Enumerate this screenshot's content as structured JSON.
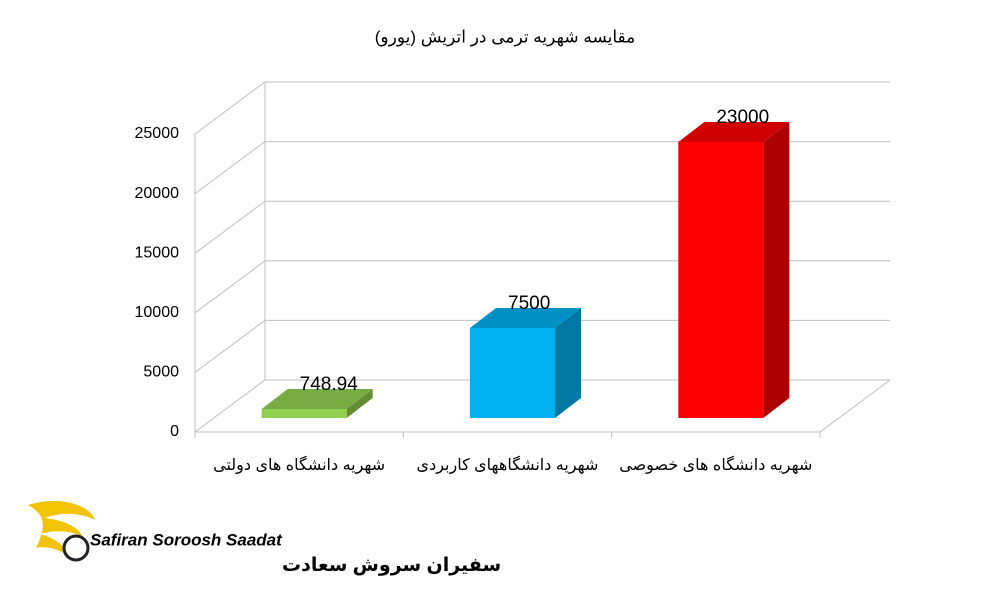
{
  "chart_data": {
    "type": "bar3d",
    "title": "مقایسه شهریه ترمی در اتریش (یورو)",
    "categories": [
      "شهریه دانشگاه های دولتی",
      "شهریه دانشگاههای کاربردی",
      "شهریه دانشگاه های خصوصی"
    ],
    "values": [
      748.94,
      7500,
      23000
    ],
    "colors": [
      "#92d050",
      "#00b0f0",
      "#ff0000"
    ],
    "ylim": [
      0,
      25000
    ],
    "yticks": [
      0,
      5000,
      10000,
      15000,
      20000,
      25000
    ],
    "grid": true
  },
  "logo": {
    "name": "Safiran Soroosh Saadat",
    "name_fa": "سفیران سروش سعادت"
  }
}
